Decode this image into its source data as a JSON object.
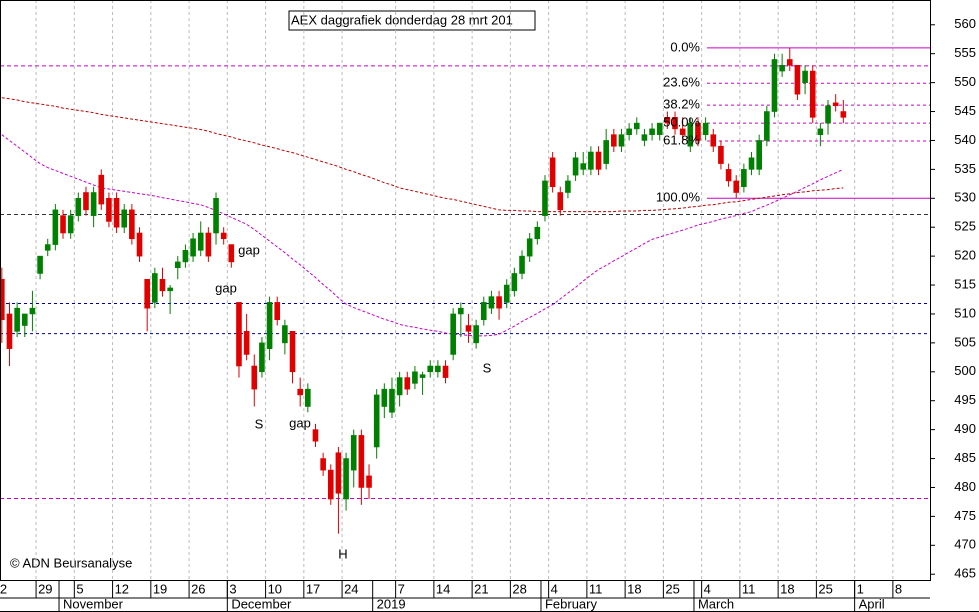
{
  "chart_data": {
    "type": "candlestick",
    "title": "AEX daggrafiek donderdag 28 mrt 201",
    "copyright": "© ADN Beursanalyse",
    "categories": [
      "2",
      null,
      null,
      null,
      null,
      "29",
      null,
      null,
      null,
      null,
      "5",
      null,
      null,
      null,
      null,
      "12",
      null,
      null,
      null,
      null,
      "19",
      null,
      null,
      null,
      null,
      "26",
      null,
      null,
      null,
      null,
      "3",
      null,
      null,
      null,
      null,
      "10",
      null,
      null,
      null,
      null,
      "17",
      null,
      null,
      null,
      null,
      "24",
      null,
      null,
      null,
      null,
      null,
      null,
      "7",
      null,
      null,
      null,
      null,
      "14",
      null,
      null,
      null,
      null,
      "21",
      null,
      null,
      null,
      null,
      "28",
      null,
      null,
      null,
      null,
      "4",
      null,
      null,
      null,
      null,
      "11",
      null,
      null,
      null,
      null,
      "18",
      null,
      null,
      null,
      null,
      "25",
      null,
      null,
      null,
      null,
      "4",
      null,
      null,
      null,
      null,
      "11",
      null,
      null,
      null,
      null,
      "18",
      null,
      null,
      null,
      null,
      "25",
      null,
      null,
      null,
      null,
      "1",
      null,
      null,
      null,
      null,
      "8",
      null,
      null,
      null
    ],
    "months": [
      null,
      null,
      null,
      null,
      null,
      null,
      null,
      null,
      "November",
      null,
      null,
      null,
      null,
      null,
      null,
      null,
      null,
      null,
      null,
      null,
      null,
      null,
      null,
      null,
      null,
      null,
      null,
      null,
      null,
      null,
      "December",
      null,
      null,
      null,
      null,
      null,
      null,
      null,
      null,
      null,
      null,
      null,
      null,
      null,
      null,
      null,
      null,
      null,
      null,
      "2019",
      null,
      null,
      null,
      null,
      null,
      null,
      null,
      null,
      null,
      null,
      null,
      null,
      null,
      null,
      null,
      null,
      null,
      null,
      null,
      null,
      null,
      "February",
      null,
      null,
      null,
      null,
      null,
      null,
      null,
      null,
      null,
      null,
      null,
      null,
      null,
      null,
      null,
      null,
      null,
      null,
      null,
      "March",
      null,
      null,
      null,
      null,
      null,
      null,
      null,
      null,
      null,
      null,
      null,
      null,
      null,
      null,
      null,
      null,
      null,
      null,
      null,
      null,
      "April",
      null,
      null,
      null,
      null,
      null,
      null,
      null,
      null
    ],
    "candles": {
      "open": [
        516,
        510,
        507,
        508,
        510,
        517,
        521,
        522,
        527,
        524,
        527,
        531,
        527,
        534,
        530,
        530,
        525,
        528,
        524,
        516,
        512,
        516,
        514,
        518,
        519,
        520,
        521,
        524,
        524,
        524,
        522,
        512,
        507,
        501,
        500,
        504,
        512,
        505,
        507,
        497,
        494,
        490,
        485,
        483,
        486,
        478,
        483,
        489,
        482,
        487,
        494,
        493,
        496,
        499,
        498,
        499,
        500,
        500,
        501,
        503,
        510,
        508,
        505,
        509,
        511,
        513,
        512,
        514,
        517,
        520,
        523,
        527,
        537,
        531,
        531,
        534,
        535,
        535,
        538,
        536,
        541,
        539,
        541,
        542,
        540,
        541,
        541,
        544,
        544,
        542,
        539,
        543,
        541,
        541,
        539,
        535,
        533,
        532,
        535,
        535,
        540,
        545,
        552,
        554,
        553,
        550,
        552,
        541,
        543,
        546.5,
        545,
        null,
        null,
        null,
        null,
        null,
        null,
        null,
        null,
        null,
        null
      ],
      "high": [
        518,
        512,
        512,
        510,
        514,
        520,
        523,
        529,
        528,
        528,
        531,
        532,
        532,
        535,
        531,
        531,
        529,
        529,
        525,
        516,
        518,
        518,
        515,
        520,
        522,
        524,
        526,
        525,
        531,
        525,
        522,
        512,
        510,
        503,
        506,
        513,
        513,
        509,
        507,
        499,
        498,
        491,
        486,
        484,
        487,
        486,
        490,
        490,
        484,
        497,
        498,
        499,
        500,
        500,
        501,
        500,
        502,
        502,
        502,
        511,
        512,
        510,
        509,
        513,
        514,
        514,
        516,
        518,
        521,
        524,
        526,
        534,
        538,
        532,
        534,
        538,
        538,
        539,
        539,
        542,
        542,
        542,
        543,
        544,
        542,
        543,
        543,
        545,
        545,
        544,
        544,
        544,
        544,
        542,
        540,
        536,
        534,
        536,
        538,
        541,
        546,
        555,
        555,
        556,
        553,
        553,
        553,
        543,
        547,
        548,
        547,
        null,
        null,
        null,
        null,
        null,
        null,
        null,
        null,
        null,
        null
      ],
      "low": [
        505,
        501,
        506,
        506,
        507,
        516,
        520,
        521,
        523,
        523,
        526,
        527,
        525,
        528,
        525,
        524,
        524,
        522,
        519,
        507,
        511,
        513,
        510,
        516,
        518,
        519,
        520,
        519,
        522,
        522,
        518,
        499,
        502,
        494,
        499,
        502,
        508,
        503,
        498,
        494,
        493,
        487,
        482,
        477,
        472,
        476,
        480,
        477,
        478,
        485,
        492,
        492,
        494,
        496,
        497,
        496,
        499,
        499,
        498,
        502,
        506,
        505,
        504,
        508,
        510,
        509,
        511,
        513,
        516,
        519,
        522,
        526,
        531,
        527,
        530,
        533,
        534,
        534,
        534,
        535,
        538,
        538,
        540,
        541,
        539,
        540,
        540,
        542,
        541,
        540,
        538,
        539,
        540,
        538,
        535,
        532,
        530,
        531,
        534,
        534,
        539,
        544,
        551,
        552,
        547,
        548,
        543,
        539,
        541,
        545,
        543,
        null,
        null,
        null,
        null,
        null,
        null,
        null,
        null,
        null,
        null
      ],
      "close": [
        509,
        504,
        511,
        510,
        511,
        520,
        522,
        528,
        524,
        527,
        530,
        528,
        531,
        529,
        526,
        525,
        528,
        523,
        520,
        511,
        517,
        514,
        514.5,
        519,
        521,
        523,
        524,
        520,
        530,
        523,
        519,
        501,
        503,
        497,
        505,
        512,
        509,
        508,
        500,
        496,
        497,
        488,
        483,
        478,
        479,
        485,
        489,
        480,
        480,
        496,
        497,
        497,
        499,
        497,
        500,
        499.5,
        501,
        501,
        499,
        510,
        511,
        507,
        508,
        512,
        513,
        511,
        515,
        517,
        520,
        523,
        525,
        533,
        532,
        528,
        533,
        537,
        536,
        538,
        535,
        540,
        539,
        541,
        542,
        543,
        541,
        542,
        543,
        543,
        542,
        541,
        543,
        540,
        543,
        539,
        536,
        533,
        531,
        535,
        537,
        540,
        545,
        554,
        553,
        553,
        548,
        552,
        544,
        542,
        546,
        546,
        544,
        null,
        null,
        null,
        null,
        null,
        null,
        null,
        null,
        null,
        null
      ]
    },
    "up_color": "#008000",
    "down_color": "#e00000",
    "overlays": [
      {
        "color": "#c00000",
        "values": [
          547.4,
          547.2,
          547.0,
          546.7,
          546.5,
          546.3,
          546.1,
          545.9,
          545.6,
          545.4,
          545.2,
          545.0,
          544.8,
          544.5,
          544.3,
          544.1,
          543.9,
          543.7,
          543.5,
          543.3,
          543.1,
          542.9,
          542.7,
          542.5,
          542.3,
          542.1,
          541.9,
          541.6,
          541.2,
          540.9,
          540.6,
          540.2,
          539.9,
          539.6,
          539.2,
          538.9,
          538.6,
          538.2,
          537.9,
          537.5,
          537.1,
          536.7,
          536.3,
          535.9,
          535.5,
          535.0,
          534.6,
          534.1,
          533.7,
          533.2,
          532.7,
          532.3,
          531.8,
          531.5,
          531.2,
          530.9,
          530.6,
          530.3,
          530.0,
          529.8,
          529.5,
          529.2,
          528.9,
          528.6,
          528.3,
          528.0,
          527.9,
          527.9,
          527.8,
          527.8,
          527.7,
          527.7,
          527.7,
          527.7,
          527.7,
          527.7,
          527.7,
          527.7,
          527.7,
          527.7,
          527.7,
          527.8,
          527.8,
          527.8,
          527.9,
          527.9,
          528.0,
          528.1,
          528.2,
          528.3,
          528.5,
          528.6,
          528.8,
          528.9,
          529.1,
          529.3,
          529.4,
          529.6,
          529.8,
          530.0,
          530.2,
          530.4,
          530.6,
          530.8,
          531.0,
          531.1,
          531.3,
          531.4,
          531.5,
          531.7,
          531.8,
          null,
          null,
          null,
          null,
          null,
          null,
          null,
          null,
          null,
          null
        ]
      },
      {
        "color": "#cc00cc",
        "values": [
          541,
          540,
          539,
          538,
          537,
          536,
          535.3,
          534.8,
          534.3,
          533.8,
          533.3,
          532.8,
          532.3,
          531.8,
          531.6,
          531.4,
          531.2,
          531.0,
          530.8,
          530.6,
          530.4,
          530.1,
          529.9,
          529.6,
          529.4,
          529.1,
          528.9,
          528.4,
          527.9,
          527.3,
          526.7,
          526.1,
          525.5,
          524.6,
          523.6,
          522.6,
          521.6,
          520.6,
          519.5,
          518.5,
          517.4,
          516.3,
          515.1,
          514.0,
          512.8,
          511.7,
          511.1,
          510.6,
          510.1,
          509.6,
          509.1,
          508.7,
          508.2,
          507.9,
          507.7,
          507.4,
          507.2,
          507.0,
          506.7,
          506.5,
          506.4,
          506.3,
          506.2,
          506.2,
          506.3,
          506.5,
          507.2,
          507.9,
          508.7,
          509.4,
          510.1,
          510.9,
          511.6,
          512.6,
          513.6,
          514.6,
          515.7,
          516.7,
          517.7,
          518.4,
          519.2,
          519.9,
          520.7,
          521.4,
          522.2,
          522.9,
          523.3,
          523.7,
          524.1,
          524.5,
          524.9,
          525.4,
          525.7,
          526.0,
          526.4,
          526.7,
          527.0,
          527.4,
          527.7,
          528.3,
          528.8,
          529.4,
          530.0,
          530.6,
          531.2,
          531.9,
          532.5,
          533.2,
          533.8,
          534.4,
          535.0,
          null,
          null,
          null,
          null,
          null,
          null,
          null,
          null,
          null,
          null
        ]
      }
    ],
    "hlines": [
      {
        "value": 552.9,
        "color": "#cc00cc",
        "dash": "4,3"
      },
      {
        "value": 511.8,
        "color": "#000099",
        "dash": "3,3"
      },
      {
        "value": 506.6,
        "color": "#000099",
        "dash": "3,3"
      },
      {
        "value": 478.1,
        "color": "#cc00cc",
        "dash": "4,3"
      },
      {
        "value": 527.2,
        "color": "#333333",
        "dash": "4,3"
      }
    ],
    "fib_color": "#cc00cc",
    "fib_levels": [
      {
        "label": "0.0%",
        "value": 556
      },
      {
        "label": "23.6%",
        "value": 549.9
      },
      {
        "label": "38.2%",
        "value": 546.1
      },
      {
        "label": "50.0%",
        "value": 543
      },
      {
        "label": "61.8%",
        "value": 539.9
      },
      {
        "label": "100.0%",
        "value": 530
      }
    ],
    "annotations": [
      {
        "text": "gap",
        "color": "#aaaaaa"
      },
      {
        "text": "gap",
        "color": "#aaaaaa"
      },
      {
        "text": "gap",
        "color": "#aaaaaa"
      },
      {
        "text": "S",
        "color": "#000080"
      },
      {
        "text": "S",
        "color": "#000080"
      },
      {
        "text": "H",
        "color": "#000080"
      }
    ],
    "ylim": [
      464,
      561
    ],
    "yticks": [
      465,
      470,
      475,
      480,
      485,
      490,
      495,
      500,
      505,
      510,
      515,
      520,
      525,
      530,
      535,
      540,
      545,
      550,
      555,
      560
    ],
    "grid": true
  }
}
